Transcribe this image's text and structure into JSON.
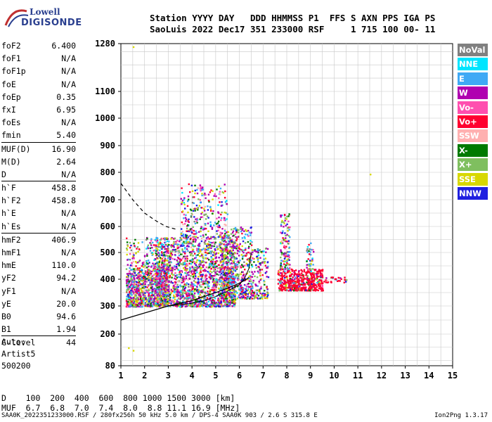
{
  "logo": {
    "line1": "Lowell",
    "line2": "DIGISONDE"
  },
  "header": {
    "row1": "Station YYYY DAY   DDD HHMMSS P1  FFS S AXN PPS IGA PS",
    "row2": "SaoLuis 2022 Dec17 351 233000 RSF     1 715 100 00- 11"
  },
  "params": [
    {
      "k": "foF2",
      "v": "6.400"
    },
    {
      "k": "foF1",
      "v": "N/A"
    },
    {
      "k": "foF1p",
      "v": "N/A"
    },
    {
      "k": "foE",
      "v": "N/A"
    },
    {
      "k": "foEp",
      "v": "0.35"
    },
    {
      "k": "fxI",
      "v": "6.95"
    },
    {
      "k": "foEs",
      "v": "N/A"
    },
    {
      "k": "fmin",
      "v": "5.40"
    },
    {
      "k": "MUF(D)",
      "v": "16.90"
    },
    {
      "k": "M(D)",
      "v": "2.64"
    },
    {
      "k": "D",
      "v": "N/A"
    },
    {
      "k": "h`F",
      "v": "458.8"
    },
    {
      "k": "h`F2",
      "v": "458.8"
    },
    {
      "k": "h`E",
      "v": "N/A"
    },
    {
      "k": "h`Es",
      "v": "N/A"
    },
    {
      "k": "hmF2",
      "v": "406.9"
    },
    {
      "k": "hmF1",
      "v": "N/A"
    },
    {
      "k": "hmE",
      "v": "110.0"
    },
    {
      "k": "yF2",
      "v": "94.2"
    },
    {
      "k": "yF1",
      "v": "N/A"
    },
    {
      "k": "yE",
      "v": "20.0"
    },
    {
      "k": "B0",
      "v": "94.6"
    },
    {
      "k": "B1",
      "v": "1.94"
    },
    {
      "k": "C-level",
      "v": "44"
    }
  ],
  "auto": [
    "Auto:",
    "Artist5",
    "500200"
  ],
  "legend": [
    {
      "label": "NoVal",
      "color": "#808080"
    },
    {
      "label": "NNE",
      "color": "#00e5ff"
    },
    {
      "label": "E",
      "color": "#3fa9f5"
    },
    {
      "label": "W",
      "color": "#b000b0"
    },
    {
      "label": "Vo-",
      "color": "#ff4faf"
    },
    {
      "label": "Vo+",
      "color": "#ff0030"
    },
    {
      "label": "SSW",
      "color": "#ffb0b0"
    },
    {
      "label": "X-",
      "color": "#007a00"
    },
    {
      "label": "X+",
      "color": "#7fbf5f"
    },
    {
      "label": "SSE",
      "color": "#d8d800"
    },
    {
      "label": "NNW",
      "color": "#2020e0"
    }
  ],
  "muf_table": {
    "row1": "D    100  200  400  600  800 1000 1500 3000 [km]",
    "row2": "MUF  6.7  6.8  7.0  7.4  8.0  8.8 11.1 16.9 [MHz]"
  },
  "footer": "SAA0K_2022351233000.RSF / 280fx256h 50 kHz 5.0 km / DPS-4 SAA0K 903 / 2.6 S 315.8 E",
  "version": "Ion2Png 1.3.17",
  "chart_data": {
    "type": "scatter",
    "x_ticks": [
      1,
      2,
      3,
      4,
      5,
      6,
      7,
      8,
      9,
      10,
      11,
      12,
      13,
      14,
      15
    ],
    "y_ticks": [
      80,
      200,
      300,
      400,
      500,
      600,
      700,
      800,
      900,
      1000,
      1100,
      1280
    ],
    "xlim": [
      1,
      15
    ],
    "ylim": [
      80,
      1280
    ],
    "grid": true,
    "legend_position": "right",
    "profile": [
      [
        1.0,
        250
      ],
      [
        2.0,
        275
      ],
      [
        3.0,
        300
      ],
      [
        4.0,
        320
      ],
      [
        5.0,
        350
      ],
      [
        5.6,
        370
      ],
      [
        6.0,
        385
      ],
      [
        6.3,
        400
      ],
      [
        6.4,
        406.9
      ]
    ],
    "dashed_trace": [
      [
        1.0,
        760
      ],
      [
        1.5,
        700
      ],
      [
        2.0,
        650
      ],
      [
        2.5,
        620
      ],
      [
        2.9,
        600
      ],
      [
        3.3,
        590
      ]
    ],
    "trace_F2": [
      [
        3.0,
        300
      ],
      [
        3.5,
        305
      ],
      [
        4.0,
        310
      ],
      [
        4.5,
        320
      ],
      [
        5.0,
        335
      ],
      [
        5.5,
        355
      ],
      [
        6.0,
        380
      ],
      [
        6.2,
        400
      ],
      [
        6.4,
        440
      ],
      [
        6.5,
        500
      ]
    ],
    "isolated_points": [
      [
        1.5,
        1270
      ],
      [
        11.5,
        795
      ],
      [
        1.3,
        150
      ],
      [
        1.5,
        140
      ]
    ]
  }
}
